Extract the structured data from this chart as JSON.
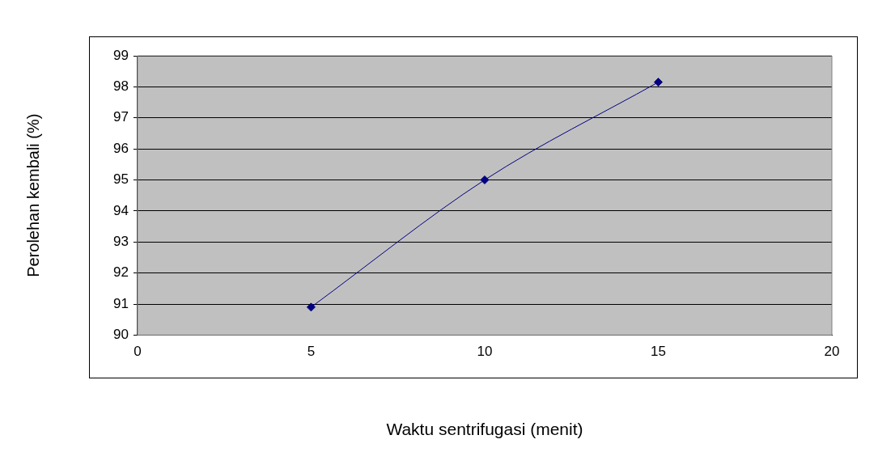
{
  "chart_data": {
    "type": "line",
    "xlabel": "Waktu sentrifugasi (menit)",
    "ylabel": "Perolehan kembali (%)",
    "x": [
      5,
      10,
      15
    ],
    "series": [
      {
        "color": "#000080",
        "values": [
          90.9,
          95.0,
          98.15
        ]
      }
    ],
    "xlim": [
      0,
      20
    ],
    "xticks": [
      0,
      5,
      10,
      15,
      20
    ],
    "ylim": [
      90,
      99
    ],
    "yticks": [
      90,
      91,
      92,
      93,
      94,
      95,
      96,
      97,
      98,
      99
    ],
    "grid": "y",
    "legend": false,
    "marker": "diamond",
    "line_style": "solid"
  }
}
